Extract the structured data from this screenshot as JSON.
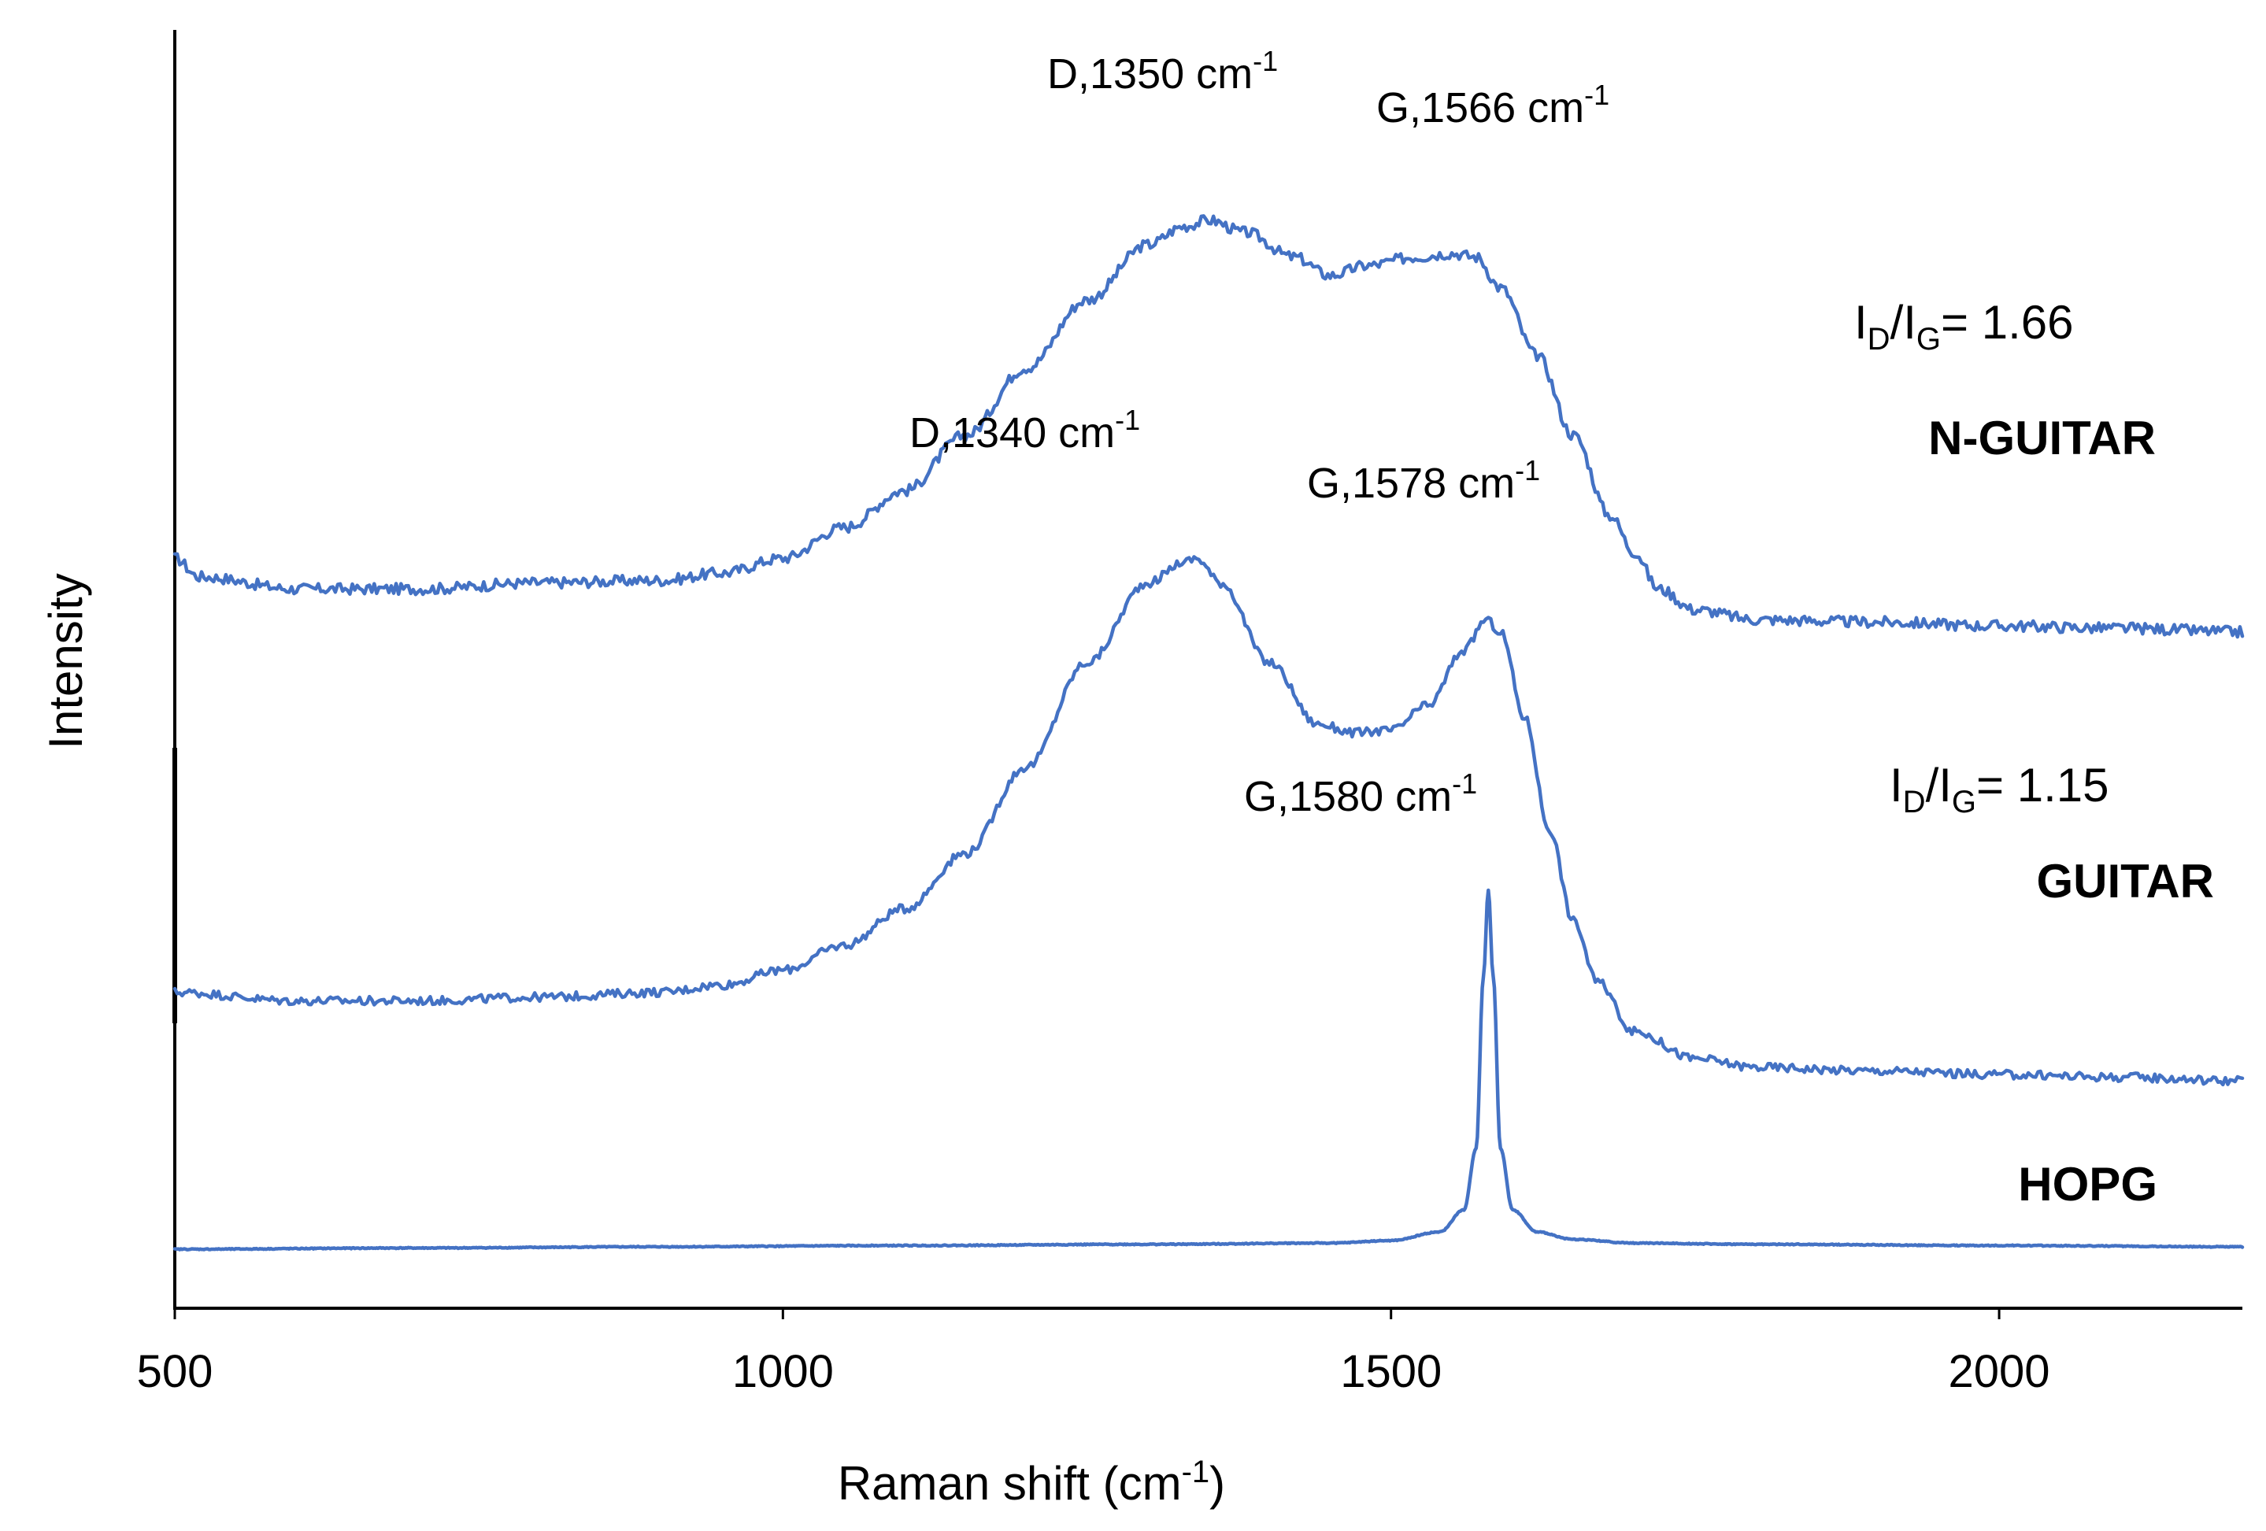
{
  "chart_data": {
    "type": "line",
    "title": "",
    "xlabel": "Raman shift (cm",
    "xlabel_sup": "-1",
    "xlabel_end": ")",
    "ylabel": "Intensity",
    "xlim": [
      500,
      2200
    ],
    "ylim": [
      0,
      100
    ],
    "x_ticks": [
      {
        "value": 500,
        "label": "500"
      },
      {
        "value": 1000,
        "label": "1000"
      },
      {
        "value": 1500,
        "label": "1500"
      },
      {
        "value": 2000,
        "label": "2000"
      }
    ],
    "line_color": "#4472C4",
    "series": [
      {
        "name": "N-GUITAR",
        "x": [
          500,
          520,
          600,
          700,
          800,
          900,
          950,
          1000,
          1050,
          1100,
          1150,
          1200,
          1250,
          1300,
          1330,
          1350,
          1380,
          1420,
          1450,
          1480,
          1520,
          1550,
          1570,
          1590,
          1620,
          1650,
          1680,
          1700,
          1720,
          1750,
          1800,
          1900,
          2000,
          2100,
          2200
        ],
        "y": [
          61.0,
          59.5,
          58.5,
          58.5,
          59.0,
          59.2,
          59.8,
          61.0,
          63.5,
          66.5,
          71.0,
          76.5,
          82.0,
          86.5,
          88.0,
          88.5,
          87.5,
          85.5,
          84.0,
          84.8,
          85.5,
          85.8,
          85.5,
          83.0,
          77.5,
          71.0,
          64.5,
          61.5,
          58.5,
          56.8,
          56.0,
          55.8,
          55.5,
          55.3,
          55.0
        ]
      },
      {
        "name": "GUITAR",
        "x": [
          500,
          600,
          700,
          800,
          900,
          950,
          1000,
          1050,
          1100,
          1150,
          1200,
          1250,
          1300,
          1330,
          1340,
          1360,
          1400,
          1440,
          1470,
          1500,
          1530,
          1560,
          1578,
          1590,
          1610,
          1630,
          1650,
          1670,
          1700,
          1750,
          1800,
          1900,
          2000,
          2100,
          2200
        ],
        "y": [
          25.7,
          25.0,
          25.0,
          25.3,
          25.7,
          26.3,
          27.5,
          29.5,
          32.5,
          37.0,
          44.0,
          52.5,
          59.0,
          60.7,
          61.0,
          59.0,
          52.5,
          47.5,
          46.8,
          47.0,
          49.0,
          53.5,
          56.0,
          55.0,
          48.0,
          39.0,
          31.5,
          26.5,
          22.5,
          20.3,
          19.6,
          19.3,
          19.0,
          18.8,
          18.5
        ]
      },
      {
        "name": "HOPG",
        "x": [
          500,
          700,
          900,
          1100,
          1300,
          1450,
          1500,
          1540,
          1560,
          1570,
          1576,
          1580,
          1584,
          1590,
          1600,
          1620,
          1650,
          1700,
          1800,
          2000,
          2200
        ],
        "y": [
          4.8,
          4.9,
          5.0,
          5.1,
          5.2,
          5.3,
          5.5,
          6.2,
          8.0,
          13.0,
          27.0,
          34.0,
          27.0,
          13.0,
          8.0,
          6.2,
          5.6,
          5.3,
          5.2,
          5.1,
          5.0
        ]
      }
    ],
    "annotations": {
      "ng_d": {
        "text": "D,1350 cm",
        "sup": "-1"
      },
      "ng_g": {
        "text": "G,1566 cm",
        "sup": "-1"
      },
      "g_d": {
        "text": "D,1340 cm",
        "sup": "-1"
      },
      "g_g": {
        "text": "G,1578 cm",
        "sup": "-1"
      },
      "h_g": {
        "text": "G,1580 cm",
        "sup": "-1"
      },
      "ratio_ng": {
        "prefix": "I",
        "sub1": "D",
        "mid": "/I",
        "sub2": "G",
        "suffix": "= 1.66"
      },
      "ratio_g": {
        "prefix": "I",
        "sub1": "D",
        "mid": "/I",
        "sub2": "G",
        "suffix": "= 1.15"
      }
    },
    "legend": [
      {
        "name": "N-GUITAR"
      },
      {
        "name": "GUITAR"
      },
      {
        "name": "HOPG"
      }
    ]
  }
}
